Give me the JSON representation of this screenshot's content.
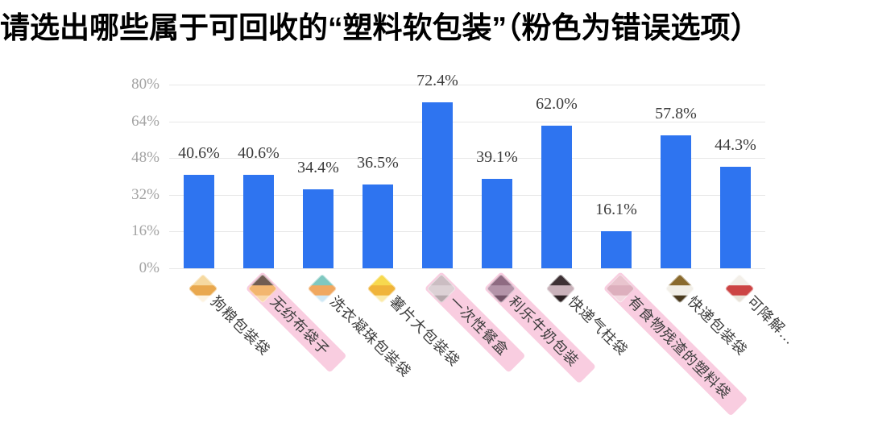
{
  "title": "请选出哪些属于可回收的“塑料软包装”（粉色为错误选项）",
  "colors": {
    "bar": "#2e74f0",
    "wrong_option_highlight": "#f9cde0",
    "gridline": "#e7e7e7",
    "axis_label": "#a3a3a3",
    "data_label": "#3a3a3a",
    "category_label": "#3d3d3d"
  },
  "chart_data": {
    "type": "bar",
    "categories": [
      "狗粮包装袋",
      "无纺布袋子",
      "洗衣凝珠包装袋",
      "薯片大包装袋",
      "一次性餐盒",
      "利乐牛奶包装",
      "快递气柱袋",
      "有食物残渣的塑料袋",
      "快递包装袋",
      "可降解…"
    ],
    "values": [
      40.6,
      40.6,
      34.4,
      36.5,
      72.4,
      39.1,
      62.0,
      16.1,
      57.8,
      44.3
    ],
    "value_labels": [
      "40.6%",
      "40.6%",
      "34.4%",
      "36.5%",
      "72.4%",
      "39.1%",
      "62.0%",
      "16.1%",
      "57.8%",
      "44.3%"
    ],
    "wrong_indices": [
      1,
      4,
      5,
      7
    ],
    "wrong_options": [
      "无纺布袋子",
      "一次性餐盒",
      "利乐牛奶包装",
      "有食物残渣的塑料袋"
    ],
    "yticks": [
      "80%",
      "64%",
      "48%",
      "32%",
      "16%",
      "0%"
    ],
    "ytick_values": [
      80,
      64,
      48,
      32,
      16,
      0
    ],
    "ylim": [
      0,
      80
    ],
    "grid": true,
    "legend": "none",
    "xlabel": "",
    "ylabel": "",
    "icons": [
      {
        "name": "dog-food-bag-icon",
        "colors": [
          "#f6d9a0",
          "#e9a84e",
          "#fdf3e0"
        ]
      },
      {
        "name": "nonwoven-bag-icon",
        "colors": [
          "#5a4a3a",
          "#f3b25c",
          "#f9d9a0"
        ]
      },
      {
        "name": "laundry-pods-bag-icon",
        "colors": [
          "#7fc8c0",
          "#f0a860",
          "#cfe8f5"
        ]
      },
      {
        "name": "chips-bag-icon",
        "colors": [
          "#f7d94e",
          "#f0b43a",
          "#fbeaa8"
        ]
      },
      {
        "name": "disposable-lunchbox-icon",
        "colors": [
          "#c3bbbd",
          "#d8d2d4",
          "#aaa2a4"
        ]
      },
      {
        "name": "tetra-pak-milk-icon",
        "colors": [
          "#7d5a72",
          "#a88ba0",
          "#5d3f55"
        ]
      },
      {
        "name": "air-column-bag-icon",
        "colors": [
          "#3d3134",
          "#c9b2ba",
          "#2a2022"
        ]
      },
      {
        "name": "food-residue-plastic-bag-icon",
        "colors": [
          "#e7c3cc",
          "#d9aab8",
          "#f2dce2"
        ]
      },
      {
        "name": "express-bag-icon",
        "colors": [
          "#8a6a2e",
          "#f2efe8",
          "#4a3a1e"
        ]
      },
      {
        "name": "degradable-bag-icon",
        "colors": [
          "#f3efe9",
          "#cc4444",
          "#e8e2d8"
        ]
      }
    ]
  }
}
